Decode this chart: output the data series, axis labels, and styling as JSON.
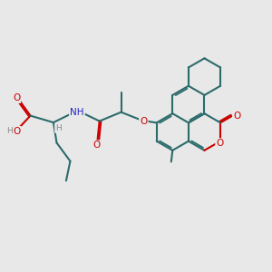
{
  "bg": "#e8e8e8",
  "bc": "#2d6b6b",
  "oc": "#cc0000",
  "nc": "#2222cc",
  "hc": "#888888",
  "lw": 1.5,
  "figsize": [
    3.0,
    3.0
  ],
  "dpi": 100,
  "xlim": [
    0,
    10
  ],
  "ylim": [
    0,
    10
  ]
}
